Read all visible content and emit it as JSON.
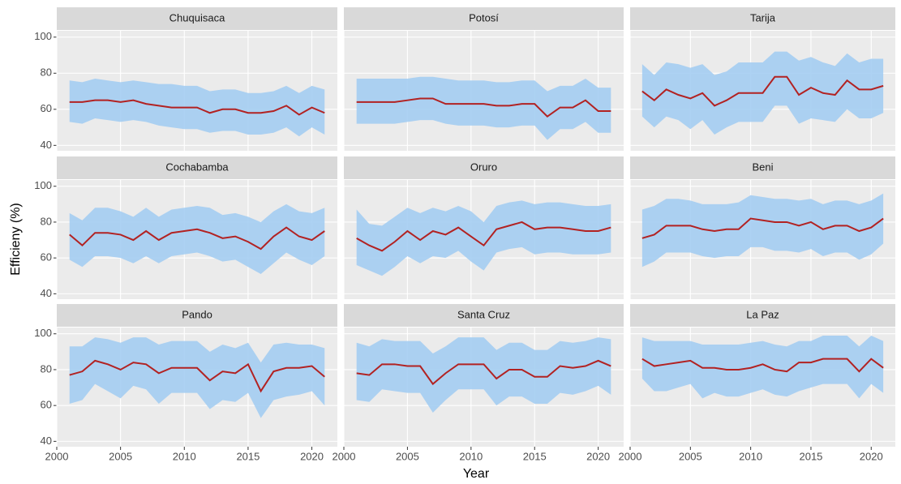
{
  "chart_data": {
    "type": "line",
    "x_label": "Year",
    "y_label": "Efficieny (%)",
    "line_color": "#b22222",
    "band_color": "#a4cdf2",
    "grid": true,
    "x": [
      2001,
      2002,
      2003,
      2004,
      2005,
      2006,
      2007,
      2008,
      2009,
      2010,
      2011,
      2012,
      2013,
      2014,
      2015,
      2016,
      2017,
      2018,
      2019,
      2020,
      2021
    ],
    "xlim": [
      2000,
      2022
    ],
    "xticks": [
      2000,
      2005,
      2010,
      2015,
      2020
    ],
    "ylim": [
      37,
      103.5
    ],
    "yticks": [
      40,
      60,
      80,
      100
    ],
    "panels": [
      {
        "name": "Chuquisaca",
        "values": [
          64,
          64,
          65,
          65,
          64,
          65,
          63,
          62,
          61,
          61,
          61,
          58,
          60,
          60,
          58,
          58,
          59,
          62,
          57,
          61,
          58
        ],
        "upper": [
          76,
          75,
          77,
          76,
          75,
          76,
          75,
          74,
          74,
          73,
          73,
          70,
          71,
          71,
          69,
          69,
          70,
          73,
          69,
          73,
          71
        ],
        "lower": [
          53,
          52,
          55,
          54,
          53,
          54,
          53,
          51,
          50,
          49,
          49,
          47,
          48,
          48,
          46,
          46,
          47,
          50,
          45,
          50,
          46
        ]
      },
      {
        "name": "Potosí",
        "values": [
          64,
          64,
          64,
          64,
          65,
          66,
          66,
          63,
          63,
          63,
          63,
          62,
          62,
          63,
          63,
          56,
          61,
          61,
          65,
          59,
          59
        ],
        "upper": [
          77,
          77,
          77,
          77,
          77,
          78,
          78,
          77,
          76,
          76,
          76,
          75,
          75,
          76,
          76,
          70,
          73,
          73,
          77,
          72,
          72
        ],
        "lower": [
          52,
          52,
          52,
          52,
          53,
          54,
          54,
          52,
          51,
          51,
          51,
          50,
          50,
          51,
          51,
          43,
          49,
          49,
          53,
          47,
          47
        ]
      },
      {
        "name": "Tarija",
        "values": [
          70,
          65,
          71,
          68,
          66,
          69,
          62,
          65,
          69,
          69,
          69,
          78,
          78,
          68,
          72,
          69,
          68,
          76,
          71,
          71,
          73
        ],
        "upper": [
          85,
          79,
          86,
          85,
          83,
          85,
          79,
          81,
          86,
          86,
          86,
          92,
          92,
          87,
          89,
          86,
          84,
          91,
          86,
          88,
          88
        ],
        "lower": [
          56,
          50,
          56,
          54,
          49,
          54,
          46,
          50,
          53,
          53,
          53,
          62,
          62,
          52,
          55,
          54,
          53,
          60,
          55,
          55,
          58
        ]
      },
      {
        "name": "Cochabamba",
        "values": [
          73,
          67,
          74,
          74,
          73,
          70,
          75,
          70,
          74,
          75,
          76,
          74,
          71,
          72,
          69,
          65,
          72,
          77,
          72,
          70,
          75
        ],
        "upper": [
          85,
          81,
          88,
          88,
          86,
          83,
          88,
          83,
          87,
          88,
          89,
          88,
          84,
          85,
          83,
          80,
          86,
          90,
          86,
          85,
          88
        ],
        "lower": [
          59,
          55,
          61,
          61,
          60,
          57,
          61,
          57,
          61,
          62,
          63,
          61,
          58,
          59,
          55,
          51,
          57,
          63,
          59,
          56,
          61
        ]
      },
      {
        "name": "Oruro",
        "values": [
          71,
          67,
          64,
          69,
          75,
          70,
          75,
          73,
          77,
          72,
          67,
          76,
          78,
          80,
          76,
          77,
          77,
          76,
          75,
          75,
          77
        ],
        "upper": [
          87,
          79,
          78,
          83,
          88,
          85,
          88,
          86,
          89,
          86,
          80,
          89,
          91,
          92,
          90,
          91,
          91,
          90,
          89,
          89,
          90
        ],
        "lower": [
          56,
          53,
          50,
          55,
          61,
          57,
          61,
          60,
          64,
          58,
          53,
          63,
          65,
          66,
          62,
          63,
          63,
          62,
          62,
          62,
          63
        ]
      },
      {
        "name": "Beni",
        "values": [
          71,
          73,
          78,
          78,
          78,
          76,
          75,
          76,
          76,
          82,
          81,
          80,
          80,
          78,
          80,
          76,
          78,
          78,
          75,
          77,
          82
        ],
        "upper": [
          87,
          89,
          93,
          93,
          92,
          90,
          90,
          90,
          91,
          95,
          94,
          93,
          93,
          92,
          93,
          90,
          92,
          92,
          90,
          92,
          96
        ],
        "lower": [
          55,
          58,
          63,
          63,
          63,
          61,
          60,
          61,
          61,
          66,
          66,
          64,
          64,
          63,
          65,
          61,
          63,
          63,
          59,
          62,
          68
        ]
      },
      {
        "name": "Pando",
        "values": [
          77,
          79,
          85,
          83,
          80,
          84,
          83,
          78,
          81,
          81,
          81,
          74,
          79,
          78,
          83,
          68,
          79,
          81,
          81,
          82,
          76
        ],
        "upper": [
          93,
          93,
          98,
          97,
          95,
          98,
          98,
          94,
          96,
          96,
          96,
          90,
          94,
          92,
          95,
          84,
          94,
          95,
          94,
          94,
          92
        ],
        "lower": [
          61,
          63,
          72,
          68,
          64,
          71,
          69,
          61,
          67,
          67,
          67,
          58,
          63,
          62,
          67,
          53,
          63,
          65,
          66,
          68,
          60
        ]
      },
      {
        "name": "Santa Cruz",
        "values": [
          78,
          77,
          83,
          83,
          82,
          82,
          72,
          78,
          83,
          83,
          83,
          75,
          80,
          80,
          76,
          76,
          82,
          81,
          82,
          85,
          82
        ],
        "upper": [
          95,
          93,
          97,
          96,
          96,
          96,
          89,
          93,
          98,
          98,
          98,
          91,
          95,
          95,
          91,
          91,
          96,
          95,
          96,
          98,
          97
        ],
        "lower": [
          63,
          62,
          69,
          68,
          67,
          67,
          56,
          63,
          69,
          69,
          69,
          60,
          65,
          65,
          61,
          61,
          67,
          66,
          68,
          71,
          66
        ]
      },
      {
        "name": "La Paz",
        "values": [
          86,
          82,
          83,
          84,
          85,
          81,
          81,
          80,
          80,
          81,
          83,
          80,
          79,
          84,
          84,
          86,
          86,
          86,
          79,
          86,
          81
        ],
        "upper": [
          98,
          96,
          96,
          96,
          96,
          94,
          94,
          94,
          94,
          95,
          96,
          94,
          93,
          96,
          96,
          99,
          99,
          99,
          93,
          99,
          96
        ],
        "lower": [
          75,
          68,
          68,
          70,
          72,
          64,
          67,
          65,
          65,
          67,
          69,
          66,
          65,
          68,
          70,
          72,
          72,
          72,
          64,
          72,
          67
        ]
      }
    ]
  }
}
